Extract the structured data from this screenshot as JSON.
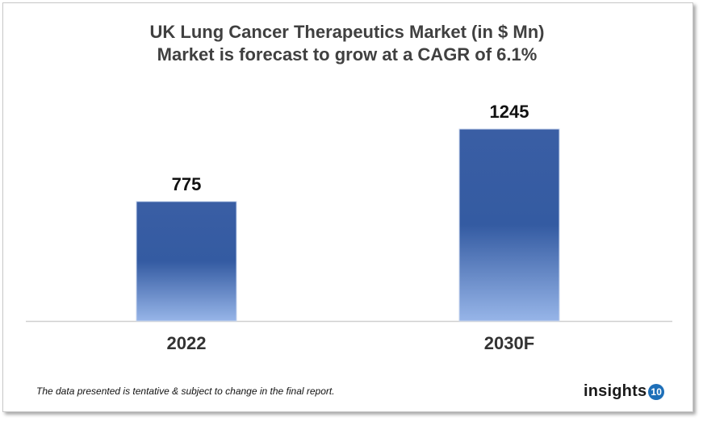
{
  "chart_data": {
    "type": "bar",
    "title": "UK Lung Cancer Therapeutics Market (in $ Mn)",
    "subtitle": "Market is forecast to grow at a CAGR of 6.1%",
    "categories": [
      "2022",
      "2030F"
    ],
    "values": [
      775,
      1245
    ],
    "data_labels": [
      "775",
      "1245"
    ],
    "xlabel": "",
    "ylabel": "",
    "ylim": [
      0,
      1245
    ],
    "grid": false,
    "colors": {
      "bar_top": "#3a5ea4",
      "bar_bottom": "#97b5e8"
    }
  },
  "footnote": "The data presented is tentative & subject to change in the final report.",
  "logo": {
    "text": "insights",
    "badge": "10"
  }
}
